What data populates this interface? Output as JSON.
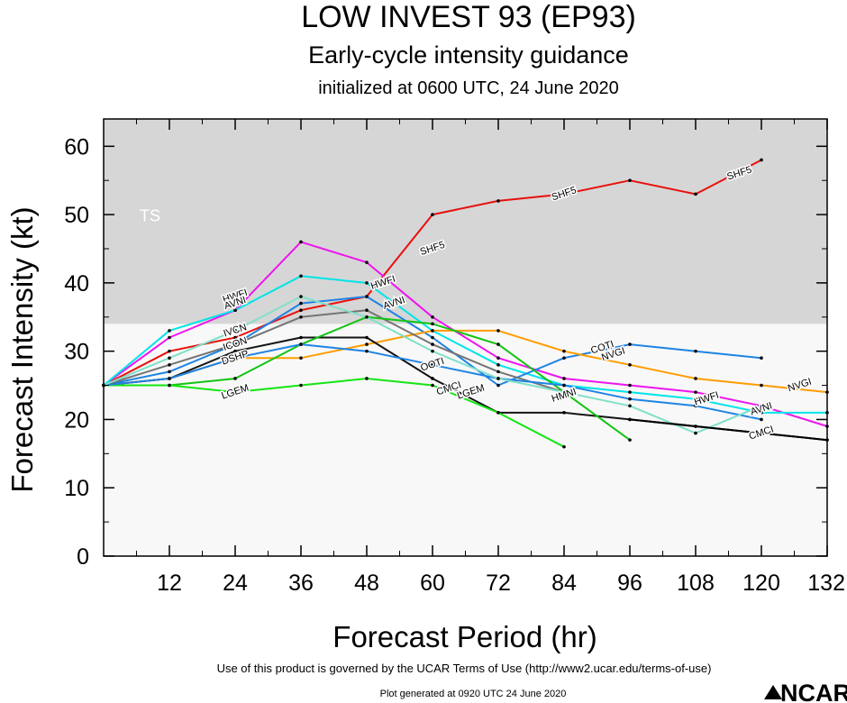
{
  "chart_data": {
    "type": "line",
    "title": "LOW INVEST 93 (EP93)",
    "subtitle": "Early-cycle intensity guidance",
    "initialized": "initialized at 0600 UTC, 24 June 2020",
    "xlabel": "Forecast Period (hr)",
    "ylabel": "Forecast Intensity (kt)",
    "xlim": [
      0,
      132
    ],
    "ylim": [
      0,
      64
    ],
    "xticks": [
      12,
      24,
      36,
      48,
      60,
      72,
      84,
      96,
      108,
      120,
      132
    ],
    "yticks": [
      0,
      10,
      20,
      30,
      40,
      50,
      60
    ],
    "ts_band": {
      "label": "TS",
      "from": 34,
      "to": 64
    },
    "series": [
      {
        "name": "SHF5",
        "color": "#e8100c",
        "x": [
          0,
          12,
          24,
          36,
          48,
          60,
          72,
          84,
          96,
          108,
          120
        ],
        "y": [
          25,
          30,
          32,
          36,
          38,
          50,
          52,
          53,
          55,
          53,
          58
        ],
        "labels": [
          {
            "x": 60,
            "y": 45
          },
          {
            "x": 84,
            "y": 53
          },
          {
            "x": 116,
            "y": 56
          }
        ]
      },
      {
        "name": "HWFI",
        "color": "#ee14ee",
        "x": [
          0,
          12,
          24,
          36,
          48,
          60,
          72,
          84,
          96,
          108,
          120,
          132
        ],
        "y": [
          25,
          32,
          36,
          46,
          43,
          35,
          29,
          26,
          25,
          24,
          22,
          19
        ],
        "labels": [
          {
            "x": 24,
            "y": 38
          },
          {
            "x": 51,
            "y": 40
          },
          {
            "x": 110,
            "y": 23
          }
        ]
      },
      {
        "name": "AVNI",
        "color": "#00e4e8",
        "x": [
          0,
          12,
          24,
          36,
          48,
          60,
          72,
          84,
          96,
          108,
          120,
          132
        ],
        "y": [
          25,
          33,
          36,
          41,
          40,
          33,
          28,
          25,
          24,
          23,
          21,
          21
        ],
        "labels": [
          {
            "x": 24,
            "y": 37
          },
          {
            "x": 53,
            "y": 37
          },
          {
            "x": 120,
            "y": 21.5
          }
        ]
      },
      {
        "name": "COTI",
        "color": "#1e84e4",
        "x": [
          0,
          12,
          24,
          36,
          48,
          60,
          72,
          84,
          96,
          108,
          120
        ],
        "y": [
          25,
          27,
          31,
          37,
          38,
          32,
          25,
          29,
          31,
          30,
          29
        ],
        "labels": [
          {
            "x": 91,
            "y": 30.5
          }
        ]
      },
      {
        "name": "NVGI",
        "color": "#ff9c00",
        "x": [
          0,
          12,
          24,
          36,
          48,
          60,
          72,
          84,
          96,
          108,
          120,
          132
        ],
        "y": [
          25,
          26,
          29,
          29,
          31,
          33,
          33,
          30,
          28,
          26,
          25,
          24
        ],
        "labels": [
          {
            "x": 93,
            "y": 29.5
          },
          {
            "x": 127,
            "y": 25
          }
        ]
      },
      {
        "name": "IVCN",
        "color": "#747474",
        "x": [
          0,
          12,
          24,
          36,
          48,
          60,
          72,
          84
        ],
        "y": [
          25,
          28,
          31,
          35,
          36,
          31,
          27,
          24
        ],
        "labels": [
          {
            "x": 24,
            "y": 33
          }
        ]
      },
      {
        "name": "ICON",
        "color": "#141414",
        "x": [
          0,
          12,
          24,
          36,
          48,
          60,
          72,
          84,
          96,
          108,
          120,
          132
        ],
        "y": [
          25,
          26,
          30,
          32,
          32,
          26,
          21,
          21,
          20,
          19,
          18,
          17
        ],
        "labels": [
          {
            "x": 24,
            "y": 31
          }
        ]
      },
      {
        "name": "DSHP",
        "color": "#12c412",
        "x": [
          0,
          12,
          24,
          36,
          48,
          60,
          72,
          84,
          96
        ],
        "y": [
          25,
          25,
          26,
          31,
          35,
          34,
          31,
          24,
          17
        ],
        "labels": [
          {
            "x": 24,
            "y": 29
          }
        ]
      },
      {
        "name": "LGEM",
        "color": "#14e614",
        "x": [
          0,
          12,
          24,
          36,
          48,
          60,
          72,
          84
        ],
        "y": [
          25,
          25,
          24,
          25,
          26,
          25,
          21,
          16
        ],
        "labels": [
          {
            "x": 24,
            "y": 24
          },
          {
            "x": 67,
            "y": 24
          }
        ]
      },
      {
        "name": "OOTI",
        "color": "#1e84e4",
        "x": [
          0,
          12,
          24,
          36,
          48,
          60,
          72,
          84,
          96,
          108,
          120
        ],
        "y": [
          25,
          26,
          29,
          31,
          30,
          28,
          26,
          25,
          23,
          22,
          20
        ],
        "labels": [
          {
            "x": 60,
            "y": 28
          }
        ]
      },
      {
        "name": "HMNI",
        "color": "#80e0c8",
        "x": [
          0,
          12,
          24,
          36,
          48,
          60,
          72,
          84,
          96,
          108,
          120
        ],
        "y": [
          25,
          29,
          33,
          38,
          35,
          30,
          26,
          24,
          22,
          18,
          22
        ],
        "labels": [
          {
            "x": 84,
            "y": 23.5
          }
        ]
      },
      {
        "name": "CMCI",
        "color": "#000000",
        "x": [
          96,
          108,
          120,
          132
        ],
        "y": [
          20,
          19,
          18,
          17
        ],
        "labels": [
          {
            "x": 63,
            "y": 24.5
          },
          {
            "x": 120,
            "y": 18
          }
        ]
      }
    ]
  },
  "footer": {
    "terms": "Use of this product is governed by the UCAR Terms of Use (http://www2.ucar.edu/terms-of-use)",
    "generated": "Plot generated at 0920 UTC   24 June 2020",
    "logo": "NCAR"
  }
}
